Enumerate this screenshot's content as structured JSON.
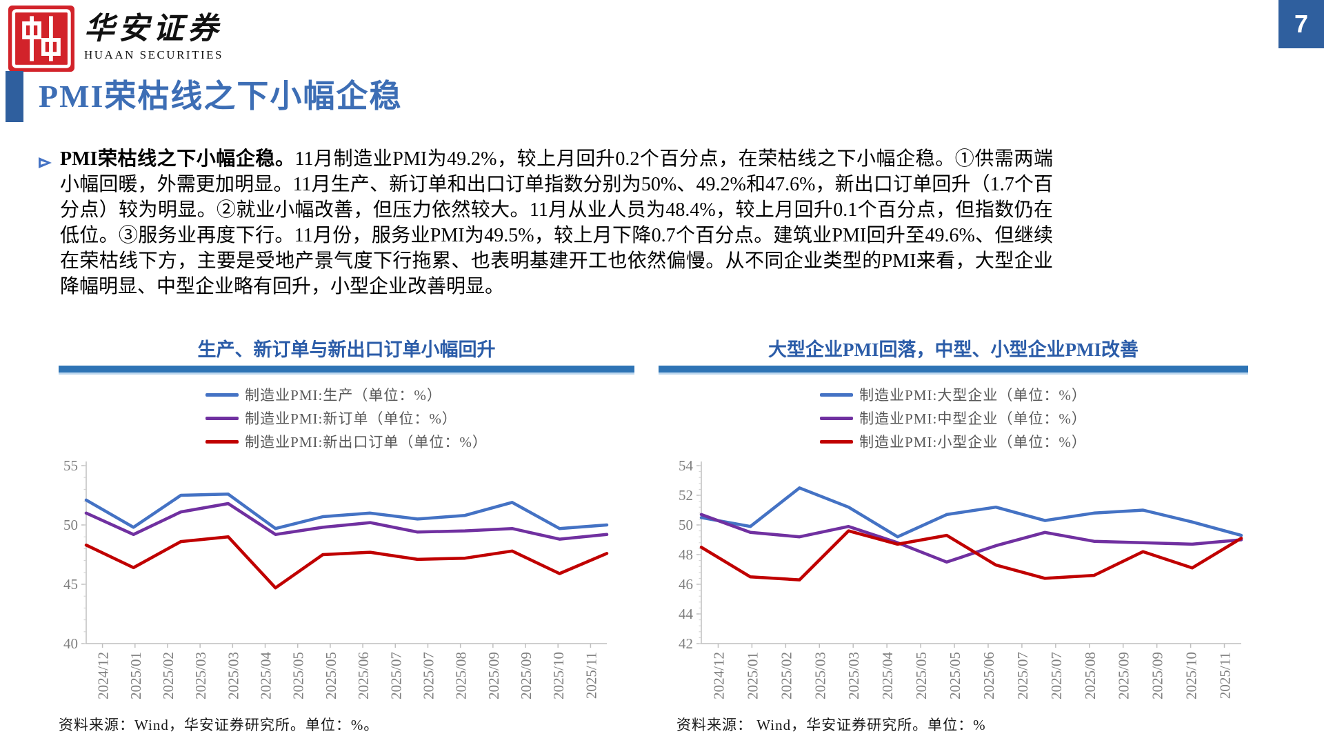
{
  "page": {
    "number": "7"
  },
  "brand": {
    "name_cn": "华安证券",
    "name_en": "HUAAN SECURITIES"
  },
  "title": "PMI荣枯线之下小幅企稳",
  "paragraph": {
    "lead": "PMI荣枯线之下小幅企稳。",
    "body": "11月制造业PMI为49.2%，较上月回升0.2个百分点，在荣枯线之下小幅企稳。①供需两端小幅回暖，外需更加明显。11月生产、新订单和出口订单指数分别为50%、49.2%和47.6%，新出口订单回升（1.7个百分点）较为明显。②就业小幅改善，但压力依然较大。11月从业人员为48.4%，较上月回升0.1个百分点，但指数仍在低位。③服务业再度下行。11月份，服务业PMI为49.5%，较上月下降0.7个百分点。建筑业PMI回升至49.6%、但继续在荣枯线下方，主要是受地产景气度下行拖累、也表明基建开工也依然偏慢。从不同企业类型的PMI来看，大型企业降幅明显、中型企业略有回升，小型企业改善明显。"
  },
  "colors": {
    "accent_blue": "#2F5F9E",
    "title_blue": "#3D6EB5",
    "chart_title_blue": "#2B5CA8",
    "bar_blue": "#2E74B5",
    "logo_red": "#D2232A",
    "line_blue": "#4472C4",
    "line_purple": "#7030A0",
    "line_red": "#C00000",
    "axis_gray": "#BFBFBF",
    "axis_label_gray": "#7F7F7F",
    "legend_gray": "#595959"
  },
  "chart_data": [
    {
      "type": "line",
      "title": "生产、新订单与新出口订单小幅回升",
      "x_labels": [
        "2024/12",
        "2025/01",
        "2025/02",
        "2025/03",
        "2025/03",
        "2025/04",
        "2025/05",
        "2025/05",
        "2025/06",
        "2025/07",
        "2025/07",
        "2025/08",
        "2025/09",
        "2025/09",
        "2025/10",
        "2025/11"
      ],
      "x": [
        "2024/12",
        "2025/01",
        "2025/02",
        "2025/03",
        "2025/04",
        "2025/05",
        "2025/06",
        "2025/07",
        "2025/08",
        "2025/09",
        "2025/10",
        "2025/11"
      ],
      "ylim": [
        40,
        55
      ],
      "yticks": [
        55,
        50,
        45,
        40
      ],
      "grid": false,
      "legend_position": "top",
      "series": [
        {
          "key": "production",
          "name": "制造业PMI:生产（单位：%）",
          "color": "#4472C4",
          "values": [
            52.1,
            49.8,
            52.5,
            52.6,
            49.7,
            50.7,
            51.0,
            50.5,
            50.8,
            51.9,
            49.7,
            50.0
          ]
        },
        {
          "key": "new-orders",
          "name": "制造业PMI:新订单（单位：%）",
          "color": "#7030A0",
          "values": [
            51.0,
            49.2,
            51.1,
            51.8,
            49.2,
            49.8,
            50.2,
            49.4,
            49.5,
            49.7,
            48.8,
            49.2
          ]
        },
        {
          "key": "new-export-orders",
          "name": "制造业PMI:新出口订单（单位：%）",
          "color": "#C00000",
          "values": [
            48.3,
            46.4,
            48.6,
            49.0,
            44.7,
            47.5,
            47.7,
            47.1,
            47.2,
            47.8,
            45.9,
            47.6
          ]
        }
      ],
      "source": "资料来源：Wind，华安证券研究所。单位：%。"
    },
    {
      "type": "line",
      "title": "大型企业PMI回落，中型、小型企业PMI改善",
      "x_labels": [
        "2024/12",
        "2025/01",
        "2025/02",
        "2025/03",
        "2025/03",
        "2025/04",
        "2025/05",
        "2025/05",
        "2025/06",
        "2025/07",
        "2025/07",
        "2025/08",
        "2025/09",
        "2025/09",
        "2025/10",
        "2025/11"
      ],
      "x": [
        "2024/12",
        "2025/01",
        "2025/02",
        "2025/03",
        "2025/04",
        "2025/05",
        "2025/06",
        "2025/07",
        "2025/08",
        "2025/09",
        "2025/10",
        "2025/11"
      ],
      "ylim": [
        42,
        54
      ],
      "yticks": [
        54,
        52,
        50,
        48,
        46,
        44,
        42
      ],
      "grid": false,
      "legend_position": "top",
      "series": [
        {
          "key": "large-enterprise",
          "name": "制造业PMI:大型企业（单位：%）",
          "color": "#4472C4",
          "values": [
            50.5,
            49.9,
            52.5,
            51.2,
            49.2,
            50.7,
            51.2,
            50.3,
            50.8,
            51.0,
            50.2,
            49.3
          ]
        },
        {
          "key": "medium-enterprise",
          "name": "制造业PMI:中型企业（单位：%）",
          "color": "#7030A0",
          "values": [
            50.7,
            49.5,
            49.2,
            49.9,
            48.8,
            47.5,
            48.6,
            49.5,
            48.9,
            48.8,
            48.7,
            49.0
          ]
        },
        {
          "key": "small-enterprise",
          "name": "制造业PMI:小型企业（单位：%）",
          "color": "#C00000",
          "values": [
            48.5,
            46.5,
            46.3,
            49.6,
            48.7,
            49.3,
            47.3,
            46.4,
            46.6,
            48.2,
            47.1,
            49.1
          ]
        }
      ],
      "source": "资料来源： Wind，华安证券研究所。单位：%"
    }
  ]
}
